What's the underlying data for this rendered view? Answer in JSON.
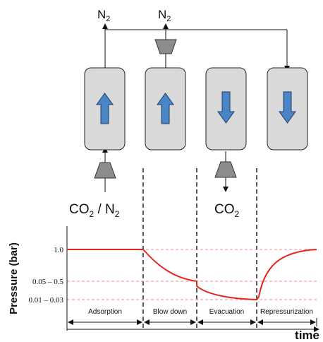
{
  "top_labels": {
    "n2_left": {
      "main": "N",
      "sub": "2"
    },
    "n2_right": {
      "main": "N",
      "sub": "2"
    }
  },
  "feed_label": {
    "a": "CO",
    "a_sub": "2",
    "sep": " / ",
    "b": "N",
    "b_sub": "2"
  },
  "product_label": {
    "main": "CO",
    "sub": "2"
  },
  "chart_data": {
    "type": "line",
    "ylabel": "Pressure (bar)",
    "xlabel": "time",
    "y_tick_labels": [
      "1.0",
      "0.05 – 0.5",
      "0.01 – 0.03"
    ],
    "steps": [
      "Adsorption",
      "Blow down",
      "Evacuation",
      "Repressurization"
    ],
    "series": [
      {
        "values": [
          [
            "Adsorption",
            "start",
            1.0
          ],
          [
            "Adsorption",
            "end",
            1.0
          ],
          [
            "Blow down",
            "end",
            0.05
          ],
          [
            "Evacuation",
            "end",
            0.01
          ],
          [
            "Repressurization",
            "end",
            1.0
          ]
        ]
      }
    ]
  },
  "colors": {
    "column_fill": "#d9d9d9",
    "arrow_fill": "#4a86c5",
    "valve_fill": "#8c8c8c",
    "pressure_curve": "#e8231c",
    "reference_lines": "#f08a8a"
  }
}
